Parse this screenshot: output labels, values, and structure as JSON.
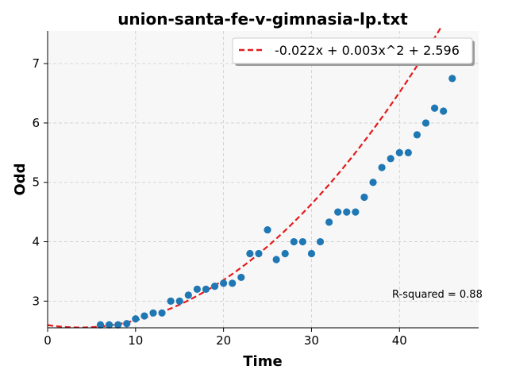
{
  "chart_data": {
    "type": "scatter",
    "title": "union-santa-fe-v-gimnasia-lp.txt",
    "xlabel": "Time",
    "ylabel": "Odd",
    "xlim": [
      0,
      49
    ],
    "ylim": [
      2.55,
      7.55
    ],
    "xticks": [
      "0",
      "10",
      "20",
      "30",
      "40"
    ],
    "yticks": [
      "3",
      "4",
      "5",
      "6",
      "7"
    ],
    "grid": true,
    "legend_position": "top-right",
    "colors": {
      "points": "#1f77b4",
      "fit": "#e41a1c",
      "plot_bg": "#f7f7f7",
      "grid": "#cccccc"
    },
    "points": {
      "x": [
        6,
        7,
        8,
        9,
        10,
        11,
        12,
        13,
        14,
        15,
        16,
        17,
        18,
        19,
        20,
        21,
        22,
        23,
        24,
        25,
        26,
        27,
        28,
        29,
        30,
        31,
        32,
        33,
        34,
        35,
        36,
        37,
        38,
        39,
        40,
        41,
        42,
        43,
        44,
        45,
        46
      ],
      "y": [
        2.6,
        2.6,
        2.6,
        2.62,
        2.7,
        2.75,
        2.8,
        2.8,
        3.0,
        3.0,
        3.1,
        3.2,
        3.2,
        3.25,
        3.3,
        3.3,
        3.4,
        3.8,
        3.8,
        4.2,
        3.7,
        3.8,
        4.0,
        4.0,
        3.8,
        4.0,
        4.33,
        4.5,
        4.5,
        4.5,
        4.75,
        5.0,
        5.25,
        5.4,
        5.5,
        5.5,
        5.8,
        6.0,
        6.25,
        6.2,
        6.75
      ]
    },
    "fit": {
      "label": "-0.022x + 0.003x^2 + 2.596",
      "a": 0.003,
      "b": -0.022,
      "c": 2.596
    },
    "annotation": "R-squared = 0.88"
  }
}
